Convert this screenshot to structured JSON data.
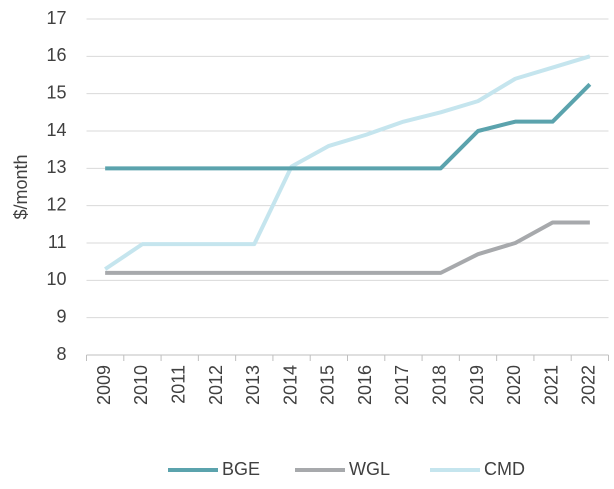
{
  "chart_data": {
    "type": "line",
    "y_label": "$/month",
    "categories": [
      "2009",
      "2010",
      "2011",
      "2012",
      "2013",
      "2014",
      "2015",
      "2016",
      "2017",
      "2018",
      "2019",
      "2020",
      "2021",
      "2022"
    ],
    "series": [
      {
        "name": "BGE",
        "color": "#5ba3ad",
        "values": [
          13,
          13,
          13,
          13,
          13,
          13,
          13,
          13,
          13,
          13,
          14,
          14.25,
          14.25,
          15.25
        ]
      },
      {
        "name": "WGL",
        "color": "#a7a9ac",
        "values": [
          10.2,
          10.2,
          10.2,
          10.2,
          10.2,
          10.2,
          10.2,
          10.2,
          10.2,
          10.2,
          10.7,
          11,
          11.55,
          11.55
        ]
      },
      {
        "name": "CMD",
        "color": "#c5e5ee",
        "values": [
          10.3,
          10.97,
          10.97,
          10.97,
          10.97,
          13.05,
          13.6,
          13.9,
          14.25,
          14.5,
          14.8,
          15.4,
          15.7,
          16
        ]
      }
    ],
    "ylim": [
      8,
      17
    ],
    "yticks": [
      8,
      9,
      10,
      11,
      12,
      13,
      14,
      15,
      16,
      17
    ],
    "grid": true,
    "legend": "bottom"
  }
}
